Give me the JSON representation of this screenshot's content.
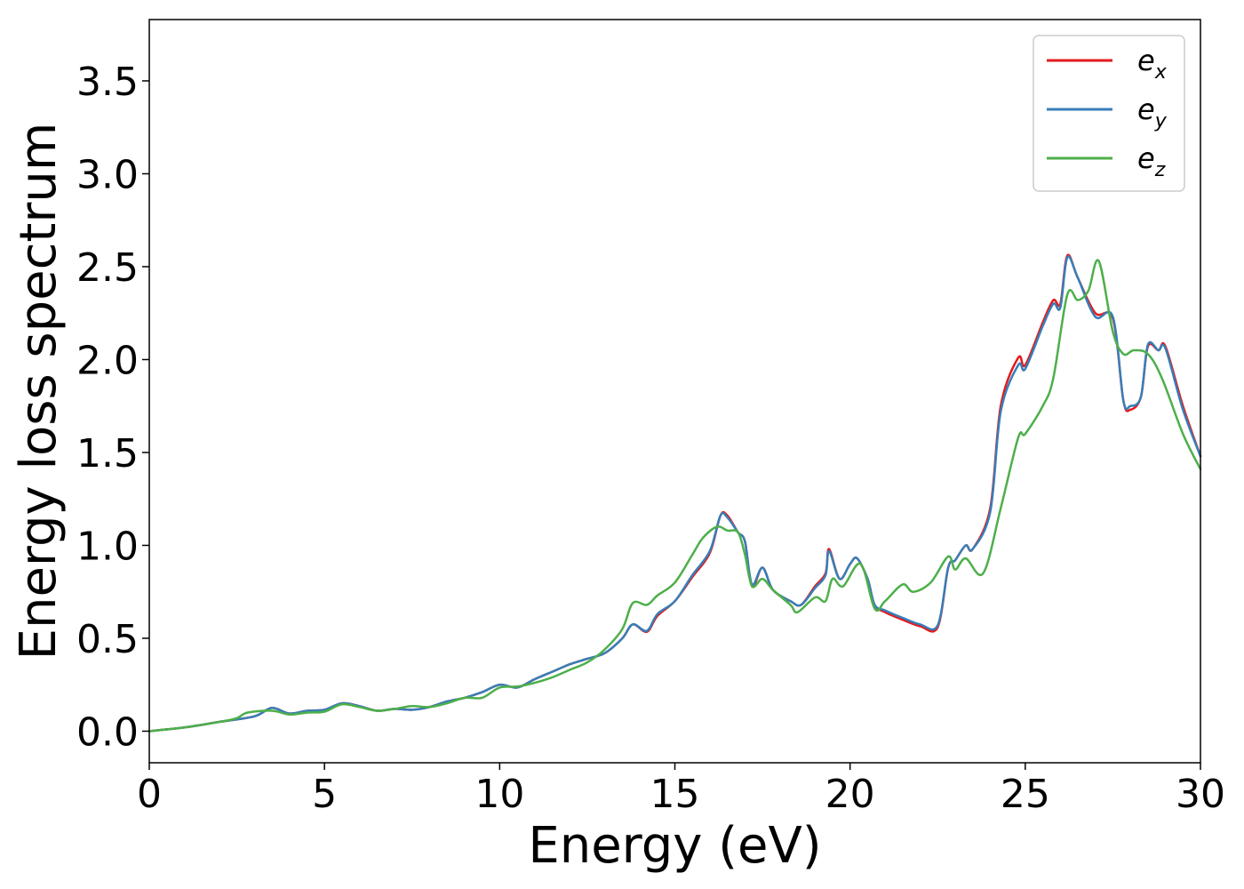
{
  "chart_data": {
    "type": "line",
    "title": "",
    "xlabel": "Energy (eV)",
    "ylabel": "Energy loss spectrum",
    "xlim": [
      0,
      30
    ],
    "ylim": [
      -0.17,
      3.83
    ],
    "xticks": [
      0,
      5,
      10,
      15,
      20,
      25,
      30
    ],
    "xtick_labels": [
      "0",
      "5",
      "10",
      "15",
      "20",
      "25",
      "30"
    ],
    "yticks": [
      0.0,
      0.5,
      1.0,
      1.5,
      2.0,
      2.5,
      3.0,
      3.5
    ],
    "ytick_labels": [
      "0.0",
      "0.5",
      "1.0",
      "1.5",
      "2.0",
      "2.5",
      "3.0",
      "3.5"
    ],
    "grid": false,
    "legend_position": "top-right",
    "series": [
      {
        "name": "e_x",
        "legend_base": "e",
        "legend_sub": "x",
        "color": "#e41a1c",
        "points": [
          [
            0,
            0.0
          ],
          [
            1,
            0.02
          ],
          [
            2,
            0.05
          ],
          [
            3,
            0.08
          ],
          [
            3.5,
            0.125
          ],
          [
            4,
            0.095
          ],
          [
            4.5,
            0.11
          ],
          [
            5,
            0.115
          ],
          [
            5.5,
            0.15
          ],
          [
            6,
            0.135
          ],
          [
            6.5,
            0.11
          ],
          [
            7,
            0.12
          ],
          [
            7.5,
            0.115
          ],
          [
            8,
            0.13
          ],
          [
            8.5,
            0.16
          ],
          [
            9,
            0.18
          ],
          [
            9.5,
            0.21
          ],
          [
            10,
            0.25
          ],
          [
            10.5,
            0.235
          ],
          [
            11,
            0.28
          ],
          [
            11.5,
            0.32
          ],
          [
            12,
            0.36
          ],
          [
            12.5,
            0.39
          ],
          [
            13,
            0.42
          ],
          [
            13.5,
            0.5
          ],
          [
            13.8,
            0.575
          ],
          [
            14.2,
            0.535
          ],
          [
            14.5,
            0.62
          ],
          [
            15,
            0.7
          ],
          [
            15.5,
            0.83
          ],
          [
            16,
            0.96
          ],
          [
            16.3,
            1.16
          ],
          [
            16.5,
            1.16
          ],
          [
            16.8,
            1.07
          ],
          [
            17.0,
            1.02
          ],
          [
            17.2,
            0.78
          ],
          [
            17.5,
            0.88
          ],
          [
            17.8,
            0.76
          ],
          [
            18.3,
            0.7
          ],
          [
            18.6,
            0.68
          ],
          [
            19,
            0.78
          ],
          [
            19.3,
            0.85
          ],
          [
            19.4,
            0.98
          ],
          [
            19.7,
            0.82
          ],
          [
            20,
            0.9
          ],
          [
            20.2,
            0.93
          ],
          [
            20.5,
            0.82
          ],
          [
            20.7,
            0.68
          ],
          [
            21,
            0.64
          ],
          [
            21.5,
            0.6
          ],
          [
            22,
            0.565
          ],
          [
            22.5,
            0.56
          ],
          [
            22.8,
            0.88
          ],
          [
            23,
            0.92
          ],
          [
            23.3,
            1.0
          ],
          [
            23.5,
            0.98
          ],
          [
            24,
            1.2
          ],
          [
            24.3,
            1.75
          ],
          [
            24.8,
            2.01
          ],
          [
            25,
            1.97
          ],
          [
            25.5,
            2.2
          ],
          [
            25.8,
            2.32
          ],
          [
            26,
            2.3
          ],
          [
            26.2,
            2.56
          ],
          [
            26.5,
            2.44
          ],
          [
            27,
            2.25
          ],
          [
            27.5,
            2.22
          ],
          [
            27.8,
            1.78
          ],
          [
            28,
            1.73
          ],
          [
            28.3,
            1.8
          ],
          [
            28.5,
            2.07
          ],
          [
            28.8,
            2.05
          ],
          [
            29,
            2.07
          ],
          [
            29.5,
            1.75
          ],
          [
            30,
            1.48
          ]
        ]
      },
      {
        "name": "e_y",
        "legend_base": "e",
        "legend_sub": "y",
        "color": "#377eb8",
        "points": [
          [
            0,
            0.0
          ],
          [
            1,
            0.02
          ],
          [
            2,
            0.05
          ],
          [
            3,
            0.08
          ],
          [
            3.5,
            0.125
          ],
          [
            4,
            0.095
          ],
          [
            4.5,
            0.11
          ],
          [
            5,
            0.115
          ],
          [
            5.5,
            0.15
          ],
          [
            6,
            0.135
          ],
          [
            6.5,
            0.11
          ],
          [
            7,
            0.12
          ],
          [
            7.5,
            0.115
          ],
          [
            8,
            0.13
          ],
          [
            8.5,
            0.16
          ],
          [
            9,
            0.18
          ],
          [
            9.5,
            0.21
          ],
          [
            10,
            0.25
          ],
          [
            10.5,
            0.235
          ],
          [
            11,
            0.28
          ],
          [
            11.5,
            0.32
          ],
          [
            12,
            0.36
          ],
          [
            12.5,
            0.39
          ],
          [
            13,
            0.42
          ],
          [
            13.5,
            0.5
          ],
          [
            13.8,
            0.575
          ],
          [
            14.2,
            0.54
          ],
          [
            14.5,
            0.63
          ],
          [
            15,
            0.7
          ],
          [
            15.5,
            0.84
          ],
          [
            16,
            0.97
          ],
          [
            16.3,
            1.16
          ],
          [
            16.5,
            1.15
          ],
          [
            16.8,
            1.07
          ],
          [
            17.0,
            1.02
          ],
          [
            17.2,
            0.79
          ],
          [
            17.5,
            0.88
          ],
          [
            17.8,
            0.76
          ],
          [
            18.3,
            0.7
          ],
          [
            18.6,
            0.68
          ],
          [
            19,
            0.77
          ],
          [
            19.3,
            0.84
          ],
          [
            19.4,
            0.97
          ],
          [
            19.7,
            0.82
          ],
          [
            20,
            0.9
          ],
          [
            20.2,
            0.93
          ],
          [
            20.5,
            0.82
          ],
          [
            20.7,
            0.68
          ],
          [
            21,
            0.65
          ],
          [
            21.5,
            0.61
          ],
          [
            22,
            0.575
          ],
          [
            22.5,
            0.57
          ],
          [
            22.8,
            0.88
          ],
          [
            23,
            0.92
          ],
          [
            23.3,
            1.0
          ],
          [
            23.5,
            0.98
          ],
          [
            24,
            1.18
          ],
          [
            24.3,
            1.72
          ],
          [
            24.8,
            1.97
          ],
          [
            25,
            1.95
          ],
          [
            25.5,
            2.18
          ],
          [
            25.8,
            2.3
          ],
          [
            26,
            2.28
          ],
          [
            26.2,
            2.55
          ],
          [
            26.5,
            2.44
          ],
          [
            27,
            2.23
          ],
          [
            27.5,
            2.23
          ],
          [
            27.8,
            1.78
          ],
          [
            28,
            1.75
          ],
          [
            28.3,
            1.8
          ],
          [
            28.5,
            2.08
          ],
          [
            28.8,
            2.05
          ],
          [
            29,
            2.06
          ],
          [
            29.5,
            1.73
          ],
          [
            30,
            1.48
          ]
        ]
      },
      {
        "name": "e_z",
        "legend_base": "e",
        "legend_sub": "z",
        "color": "#4daf4a",
        "points": [
          [
            0,
            0.0
          ],
          [
            1,
            0.02
          ],
          [
            2,
            0.05
          ],
          [
            2.5,
            0.07
          ],
          [
            2.8,
            0.1
          ],
          [
            3.5,
            0.11
          ],
          [
            4,
            0.09
          ],
          [
            4.5,
            0.1
          ],
          [
            5,
            0.105
          ],
          [
            5.5,
            0.145
          ],
          [
            6,
            0.13
          ],
          [
            6.5,
            0.11
          ],
          [
            7,
            0.12
          ],
          [
            7.5,
            0.135
          ],
          [
            8,
            0.13
          ],
          [
            8.5,
            0.15
          ],
          [
            9,
            0.18
          ],
          [
            9.5,
            0.18
          ],
          [
            10,
            0.235
          ],
          [
            10.5,
            0.24
          ],
          [
            11,
            0.26
          ],
          [
            11.5,
            0.29
          ],
          [
            12,
            0.33
          ],
          [
            12.5,
            0.37
          ],
          [
            13,
            0.44
          ],
          [
            13.5,
            0.55
          ],
          [
            13.8,
            0.69
          ],
          [
            14.2,
            0.68
          ],
          [
            14.5,
            0.73
          ],
          [
            15,
            0.8
          ],
          [
            15.5,
            0.95
          ],
          [
            15.8,
            1.04
          ],
          [
            16.2,
            1.1
          ],
          [
            16.5,
            1.08
          ],
          [
            16.8,
            1.07
          ],
          [
            17.0,
            0.95
          ],
          [
            17.2,
            0.78
          ],
          [
            17.5,
            0.82
          ],
          [
            17.8,
            0.76
          ],
          [
            18.3,
            0.68
          ],
          [
            18.5,
            0.64
          ],
          [
            19,
            0.72
          ],
          [
            19.3,
            0.7
          ],
          [
            19.5,
            0.82
          ],
          [
            19.8,
            0.78
          ],
          [
            20.3,
            0.9
          ],
          [
            20.7,
            0.66
          ],
          [
            21,
            0.7
          ],
          [
            21.5,
            0.79
          ],
          [
            21.8,
            0.75
          ],
          [
            22.3,
            0.8
          ],
          [
            22.8,
            0.94
          ],
          [
            23,
            0.87
          ],
          [
            23.3,
            0.93
          ],
          [
            23.8,
            0.85
          ],
          [
            24.3,
            1.2
          ],
          [
            24.8,
            1.58
          ],
          [
            25,
            1.6
          ],
          [
            25.5,
            1.75
          ],
          [
            25.8,
            1.9
          ],
          [
            26.2,
            2.35
          ],
          [
            26.5,
            2.32
          ],
          [
            26.8,
            2.37
          ],
          [
            27.1,
            2.53
          ],
          [
            27.5,
            2.15
          ],
          [
            27.8,
            2.03
          ],
          [
            28.1,
            2.05
          ],
          [
            28.5,
            2.03
          ],
          [
            28.9,
            1.9
          ],
          [
            29.5,
            1.6
          ],
          [
            30,
            1.41
          ]
        ]
      }
    ]
  }
}
